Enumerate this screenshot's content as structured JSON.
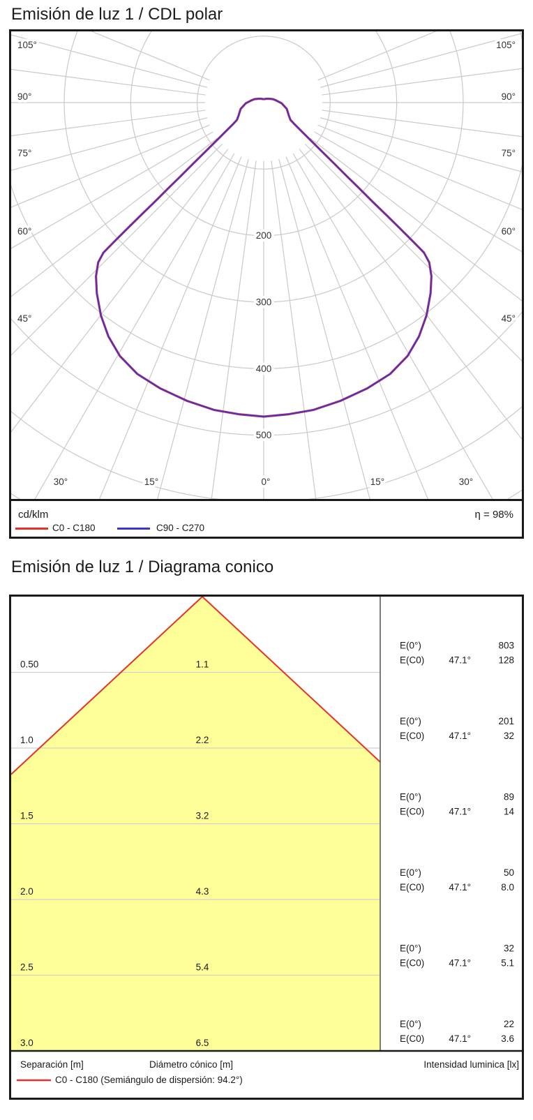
{
  "page_background": "#ffffff",
  "chart_data": [
    {
      "type": "polar",
      "title": "Emisión de luz 1 / CDL polar",
      "unit": "cd/klm",
      "efficiency": "η = 98%",
      "angle_labels_side": [
        "105°",
        "90°",
        "75°",
        "60°",
        "45°"
      ],
      "angle_labels_bottom": [
        "30°",
        "15°",
        "0°",
        "15°",
        "30°"
      ],
      "radial_ticks": [
        200,
        300,
        400,
        500
      ],
      "radial_axis_max": 600,
      "grid_color": "#c9c9c9",
      "symmetric": true,
      "series": [
        {
          "name": "C0 - C180",
          "color": "#e63329",
          "points_theta_deg_cd": [
            [
              0,
              472
            ],
            [
              4.6,
              470
            ],
            [
              9.2,
              468
            ],
            [
              14.4,
              463
            ],
            [
              19.9,
              457
            ],
            [
              25,
              450
            ],
            [
              29.6,
              438
            ],
            [
              33.6,
              422
            ],
            [
              37.4,
              403
            ],
            [
              41.2,
              381
            ],
            [
              44,
              363
            ],
            [
              46,
              346
            ],
            [
              46.9,
              330
            ],
            [
              47.1,
              303
            ],
            [
              47.3,
              275
            ],
            [
              47.5,
              248
            ],
            [
              47.7,
              221
            ],
            [
              48.1,
              193
            ],
            [
              48.5,
              166
            ],
            [
              49.2,
              138
            ],
            [
              50.1,
              111
            ],
            [
              51.7,
              84
            ],
            [
              54.8,
              57
            ],
            [
              57,
              48
            ],
            [
              63.4,
              42
            ],
            [
              74.7,
              36
            ],
            [
              87.8,
              27
            ],
            [
              100,
              19
            ],
            [
              110,
              15
            ],
            [
              125,
              10
            ],
            [
              145,
              7
            ],
            [
              165,
              5.5
            ],
            [
              180,
              5
            ]
          ]
        },
        {
          "name": "C90 - C270",
          "color": "#3d35d1",
          "points_theta_deg_cd": [
            [
              0,
              472
            ],
            [
              4.6,
              470
            ],
            [
              9.2,
              468
            ],
            [
              14.4,
              463
            ],
            [
              19.9,
              457
            ],
            [
              25,
              450
            ],
            [
              29.6,
              438
            ],
            [
              33.6,
              422
            ],
            [
              37.4,
              403
            ],
            [
              41.2,
              381
            ],
            [
              44,
              363
            ],
            [
              46,
              346
            ],
            [
              46.9,
              330
            ],
            [
              47.1,
              303
            ],
            [
              47.3,
              275
            ],
            [
              47.5,
              248
            ],
            [
              47.7,
              221
            ],
            [
              48.1,
              193
            ],
            [
              48.5,
              166
            ],
            [
              49.2,
              138
            ],
            [
              50.1,
              111
            ],
            [
              51.7,
              84
            ],
            [
              54.8,
              57
            ],
            [
              57,
              48
            ],
            [
              63.4,
              42
            ],
            [
              74.7,
              36
            ],
            [
              87.8,
              27
            ],
            [
              100,
              19
            ],
            [
              110,
              15
            ],
            [
              125,
              10
            ],
            [
              145,
              7
            ],
            [
              165,
              5.5
            ],
            [
              180,
              5
            ]
          ]
        }
      ]
    },
    {
      "type": "cone-diagram",
      "title": "Emisión de luz 1 / Diagrama conico",
      "beam_half_angle_deg": 47.1,
      "beam_fill_color": "#ffff99",
      "beam_edge_color": "#e63329",
      "grid_color": "#cfcfcf",
      "separation_step_m": 0.5,
      "row_labels": {
        "e0": "E(0°)",
        "ec0": "E(C0)"
      },
      "rows": [
        {
          "separation_m": "0.50",
          "cone_diameter_m": "1.1",
          "E0_lx": "803",
          "EC0_angle": "47.1°",
          "EC0_lx": "128"
        },
        {
          "separation_m": "1.0",
          "cone_diameter_m": "2.2",
          "E0_lx": "201",
          "EC0_angle": "47.1°",
          "EC0_lx": "32"
        },
        {
          "separation_m": "1.5",
          "cone_diameter_m": "3.2",
          "E0_lx": "89",
          "EC0_angle": "47.1°",
          "EC0_lx": "14"
        },
        {
          "separation_m": "2.0",
          "cone_diameter_m": "4.3",
          "E0_lx": "50",
          "EC0_angle": "47.1°",
          "EC0_lx": "8.0"
        },
        {
          "separation_m": "2.5",
          "cone_diameter_m": "5.4",
          "E0_lx": "32",
          "EC0_angle": "47.1°",
          "EC0_lx": "5.1"
        },
        {
          "separation_m": "3.0",
          "cone_diameter_m": "6.5",
          "E0_lx": "22",
          "EC0_angle": "47.1°",
          "EC0_lx": "3.6"
        }
      ],
      "footer": {
        "separation": "Separación [m]",
        "diameter": "Diámetro cónico [m]",
        "intensity": "Intensidad luminica [lx]"
      },
      "legend": {
        "label": "C0 - C180 (Semiángulo de dispersión: 94.2°)",
        "color": "#e63329"
      }
    }
  ]
}
